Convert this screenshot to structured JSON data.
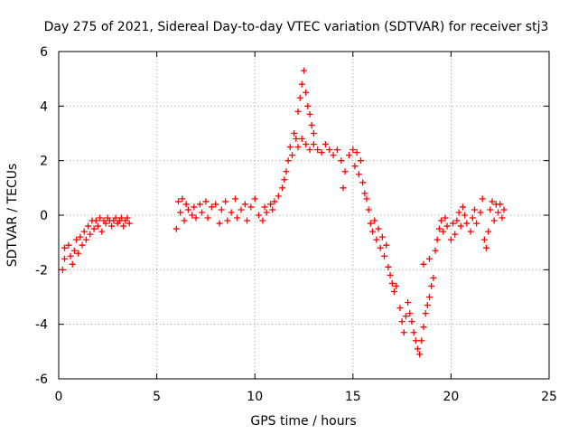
{
  "chart_data": {
    "type": "scatter",
    "title": "Day 275 of 2021, Sidereal Day-to-day VTEC variation (SDTVAR) for receiver stj3",
    "xlabel": "GPS time / hours",
    "ylabel": "SDTVAR / TECUs",
    "xlim": [
      0,
      25
    ],
    "ylim": [
      -6,
      6
    ],
    "xticks": [
      "0",
      "5",
      "10",
      "15",
      "20",
      "25"
    ],
    "yticks": [
      "-6",
      "-4",
      "-2",
      "0",
      "2",
      "4",
      "6"
    ],
    "grid": true,
    "marker": "+",
    "color": "#ff0000",
    "series": [
      {
        "name": "SDTVAR",
        "points": [
          [
            0.2,
            -2.0
          ],
          [
            0.3,
            -1.6
          ],
          [
            0.3,
            -1.2
          ],
          [
            0.5,
            -1.1
          ],
          [
            0.6,
            -1.5
          ],
          [
            0.7,
            -1.8
          ],
          [
            0.8,
            -1.3
          ],
          [
            0.9,
            -0.9
          ],
          [
            1.0,
            -1.4
          ],
          [
            1.1,
            -0.8
          ],
          [
            1.2,
            -1.1
          ],
          [
            1.3,
            -0.6
          ],
          [
            1.4,
            -0.9
          ],
          [
            1.5,
            -0.4
          ],
          [
            1.6,
            -0.7
          ],
          [
            1.7,
            -0.2
          ],
          [
            1.8,
            -0.5
          ],
          [
            1.9,
            -0.2
          ],
          [
            2.0,
            -0.4
          ],
          [
            2.1,
            -0.1
          ],
          [
            2.2,
            -0.6
          ],
          [
            2.3,
            -0.2
          ],
          [
            2.4,
            -0.3
          ],
          [
            2.5,
            -0.1
          ],
          [
            2.6,
            -0.2
          ],
          [
            2.7,
            -0.4
          ],
          [
            2.8,
            -0.2
          ],
          [
            2.9,
            -0.1
          ],
          [
            3.0,
            -0.3
          ],
          [
            3.1,
            -0.2
          ],
          [
            3.2,
            -0.1
          ],
          [
            3.3,
            -0.4
          ],
          [
            3.4,
            -0.2
          ],
          [
            3.5,
            -0.1
          ],
          [
            3.6,
            -0.3
          ],
          [
            6.0,
            -0.5
          ],
          [
            6.1,
            0.5
          ],
          [
            6.2,
            0.1
          ],
          [
            6.3,
            0.6
          ],
          [
            6.4,
            -0.2
          ],
          [
            6.5,
            0.4
          ],
          [
            6.6,
            0.2
          ],
          [
            6.8,
            0.0
          ],
          [
            6.9,
            0.3
          ],
          [
            7.0,
            -0.1
          ],
          [
            7.2,
            0.4
          ],
          [
            7.3,
            0.1
          ],
          [
            7.5,
            0.5
          ],
          [
            7.6,
            -0.1
          ],
          [
            7.8,
            0.3
          ],
          [
            8.0,
            0.4
          ],
          [
            8.2,
            -0.3
          ],
          [
            8.3,
            0.2
          ],
          [
            8.5,
            0.5
          ],
          [
            8.6,
            -0.2
          ],
          [
            8.8,
            0.1
          ],
          [
            9.0,
            0.6
          ],
          [
            9.1,
            -0.1
          ],
          [
            9.3,
            0.2
          ],
          [
            9.5,
            0.4
          ],
          [
            9.6,
            -0.2
          ],
          [
            9.8,
            0.3
          ],
          [
            10.0,
            0.6
          ],
          [
            10.2,
            0.0
          ],
          [
            10.4,
            -0.2
          ],
          [
            10.5,
            0.3
          ],
          [
            10.6,
            0.1
          ],
          [
            10.8,
            0.4
          ],
          [
            10.9,
            0.2
          ],
          [
            11.0,
            0.5
          ],
          [
            11.2,
            0.7
          ],
          [
            11.4,
            1.0
          ],
          [
            11.5,
            1.3
          ],
          [
            11.6,
            1.6
          ],
          [
            11.7,
            2.0
          ],
          [
            11.8,
            2.5
          ],
          [
            11.9,
            2.2
          ],
          [
            12.0,
            3.0
          ],
          [
            12.1,
            2.8
          ],
          [
            12.2,
            3.8
          ],
          [
            12.3,
            4.3
          ],
          [
            12.4,
            4.8
          ],
          [
            12.5,
            5.3
          ],
          [
            12.6,
            4.5
          ],
          [
            12.7,
            4.0
          ],
          [
            12.8,
            3.7
          ],
          [
            12.9,
            3.3
          ],
          [
            13.0,
            3.0
          ],
          [
            12.2,
            2.5
          ],
          [
            12.4,
            2.8
          ],
          [
            12.6,
            2.6
          ],
          [
            12.8,
            2.4
          ],
          [
            13.0,
            2.6
          ],
          [
            13.2,
            2.4
          ],
          [
            13.4,
            2.3
          ],
          [
            13.6,
            2.6
          ],
          [
            13.8,
            2.4
          ],
          [
            14.0,
            2.2
          ],
          [
            14.2,
            2.4
          ],
          [
            14.4,
            2.0
          ],
          [
            14.5,
            1.0
          ],
          [
            14.6,
            1.6
          ],
          [
            14.8,
            2.2
          ],
          [
            15.0,
            2.4
          ],
          [
            15.1,
            1.8
          ],
          [
            15.2,
            2.3
          ],
          [
            15.3,
            1.5
          ],
          [
            15.4,
            2.0
          ],
          [
            15.5,
            1.2
          ],
          [
            15.6,
            0.8
          ],
          [
            15.7,
            0.6
          ],
          [
            15.8,
            0.2
          ],
          [
            15.9,
            -0.3
          ],
          [
            16.0,
            -0.6
          ],
          [
            16.1,
            -0.2
          ],
          [
            16.2,
            -0.9
          ],
          [
            16.3,
            -0.5
          ],
          [
            16.4,
            -1.2
          ],
          [
            16.5,
            -0.8
          ],
          [
            16.6,
            -1.5
          ],
          [
            16.7,
            -1.1
          ],
          [
            16.8,
            -1.9
          ],
          [
            16.9,
            -2.2
          ],
          [
            17.0,
            -2.5
          ],
          [
            17.1,
            -2.8
          ],
          [
            17.2,
            -2.6
          ],
          [
            17.4,
            -3.4
          ],
          [
            17.5,
            -3.9
          ],
          [
            17.6,
            -4.3
          ],
          [
            17.7,
            -3.7
          ],
          [
            17.8,
            -3.2
          ],
          [
            17.9,
            -3.6
          ],
          [
            18.0,
            -3.9
          ],
          [
            18.1,
            -4.3
          ],
          [
            18.2,
            -4.6
          ],
          [
            18.3,
            -4.9
          ],
          [
            18.4,
            -5.1
          ],
          [
            18.5,
            -4.6
          ],
          [
            18.6,
            -4.1
          ],
          [
            18.7,
            -3.6
          ],
          [
            18.8,
            -3.3
          ],
          [
            18.9,
            -3.0
          ],
          [
            19.0,
            -2.6
          ],
          [
            19.1,
            -2.3
          ],
          [
            18.6,
            -1.8
          ],
          [
            18.9,
            -1.6
          ],
          [
            19.2,
            -1.3
          ],
          [
            19.3,
            -0.9
          ],
          [
            19.4,
            -0.5
          ],
          [
            19.5,
            -0.2
          ],
          [
            19.6,
            -0.6
          ],
          [
            19.7,
            -0.1
          ],
          [
            19.8,
            -0.4
          ],
          [
            20.0,
            -0.9
          ],
          [
            20.1,
            -0.3
          ],
          [
            20.2,
            -0.7
          ],
          [
            20.3,
            -0.2
          ],
          [
            20.4,
            0.1
          ],
          [
            20.5,
            -0.4
          ],
          [
            20.6,
            0.3
          ],
          [
            20.7,
            0.0
          ],
          [
            20.8,
            -0.3
          ],
          [
            21.0,
            -0.6
          ],
          [
            21.1,
            -0.1
          ],
          [
            21.2,
            0.2
          ],
          [
            21.3,
            -0.3
          ],
          [
            21.5,
            0.1
          ],
          [
            21.6,
            0.6
          ],
          [
            21.7,
            -0.9
          ],
          [
            21.8,
            -1.2
          ],
          [
            21.9,
            -0.6
          ],
          [
            22.0,
            0.2
          ],
          [
            22.1,
            0.5
          ],
          [
            22.2,
            -0.2
          ],
          [
            22.3,
            0.4
          ],
          [
            22.4,
            0.1
          ],
          [
            22.5,
            0.4
          ],
          [
            22.6,
            -0.1
          ],
          [
            22.7,
            0.2
          ]
        ]
      }
    ]
  }
}
